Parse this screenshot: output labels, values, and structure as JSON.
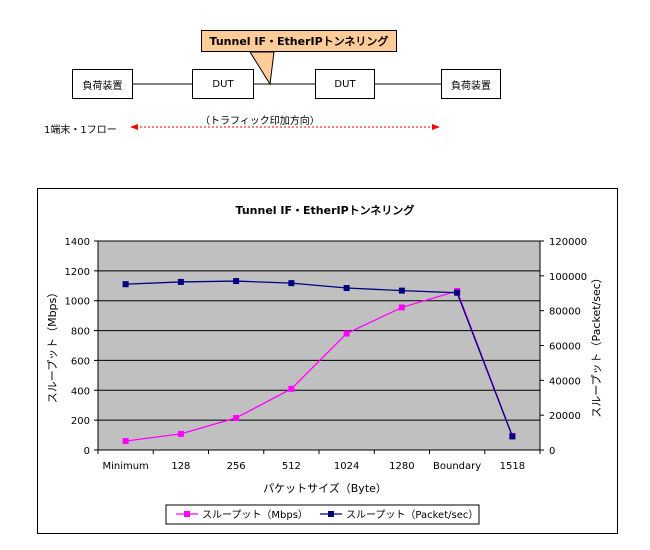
{
  "diagram": {
    "left_device": "負荷装置",
    "dut1": "DUT",
    "dut2": "DUT",
    "right_device": "負荷装置",
    "callout": "Tunnel IF・EtherIPトンネリング",
    "traffic_direction": "（トラフィック印加方向）",
    "flow_label": "1端末・1フロー",
    "arrow_color": "#ff0000",
    "callout_bg": "#ffcc99"
  },
  "chart_data": {
    "type": "line",
    "title": "Tunnel IF・EtherIPトンネリング",
    "xlabel": "パケットサイズ（Byte）",
    "ylabel": "スループット（Mbps）",
    "y2label": "スループット（Packet/sec）",
    "categories": [
      "Minimum",
      "128",
      "256",
      "512",
      "1024",
      "1280",
      "Boundary",
      "1518"
    ],
    "ylim": [
      0,
      1400
    ],
    "y_ticks": [
      "0",
      "200",
      "400",
      "600",
      "800",
      "1000",
      "1200",
      "1400"
    ],
    "y2lim": [
      0,
      120000
    ],
    "y2_ticks": [
      "0",
      "20000",
      "40000",
      "60000",
      "80000",
      "100000",
      "120000"
    ],
    "plot_bg": "#c0c0c0",
    "grid": true,
    "legend_position": "bottom",
    "series": [
      {
        "name": "スループット（Mbps）",
        "axis": "left",
        "color": "#ff00ff",
        "values": [
          60,
          108,
          215,
          410,
          780,
          955,
          1065,
          95
        ]
      },
      {
        "name": "スループット（Packet/sec）",
        "axis": "right",
        "color": "#000080",
        "values": [
          95200,
          96500,
          97000,
          95800,
          93000,
          91500,
          90300,
          7800
        ]
      }
    ]
  }
}
